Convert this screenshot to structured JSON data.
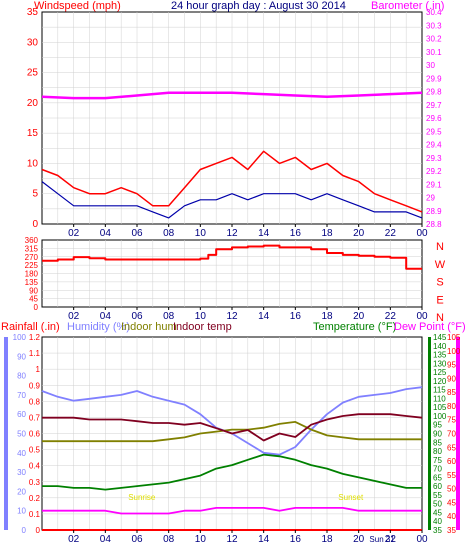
{
  "chart_data": [
    {
      "type": "line",
      "title": "24 hour graph day : August 30 2014",
      "left_label": "Windspeed (mph)",
      "right_label": "Barometer (.in)",
      "x_ticks": [
        "02",
        "04",
        "06",
        "08",
        "10",
        "12",
        "14",
        "16",
        "18",
        "20",
        "22",
        "00"
      ],
      "y_left": {
        "range": [
          0,
          35
        ],
        "ticks": [
          "35",
          "30",
          "25",
          "20",
          "15",
          "10",
          "5",
          "0"
        ]
      },
      "y_right": {
        "range": [
          28.8,
          30.4
        ],
        "ticks": [
          "30.4",
          "30.3",
          "30.2",
          "30.1",
          "30",
          "29.9",
          "29.8",
          "29.7",
          "29.6",
          "29.5",
          "29.4",
          "29.3",
          "29.2",
          "29.1",
          "29",
          "28.9",
          "28.8"
        ]
      },
      "series": [
        {
          "name": "Windspeed (mph)",
          "color": "#ff0000",
          "axis": "left",
          "x": [
            0,
            1,
            2,
            3,
            4,
            5,
            6,
            7,
            8,
            9,
            10,
            11,
            12,
            13,
            14,
            15,
            16,
            17,
            18,
            19,
            20,
            21,
            22,
            23,
            24
          ],
          "y": [
            9,
            8,
            6,
            5,
            5,
            6,
            5,
            3,
            3,
            6,
            9,
            10,
            11,
            9,
            12,
            10,
            11,
            9,
            10,
            8,
            7,
            5,
            4,
            3,
            2
          ]
        },
        {
          "name": "Average wind (mph)",
          "color": "#0000aa",
          "axis": "left",
          "x": [
            0,
            1,
            2,
            3,
            4,
            5,
            6,
            7,
            8,
            9,
            10,
            11,
            12,
            13,
            14,
            15,
            16,
            17,
            18,
            19,
            20,
            21,
            22,
            23,
            24
          ],
          "y": [
            7,
            5,
            3,
            3,
            3,
            3,
            3,
            2,
            1,
            3,
            4,
            4,
            5,
            4,
            5,
            5,
            5,
            4,
            5,
            4,
            3,
            2,
            2,
            2,
            1
          ]
        },
        {
          "name": "Barometer (.in)",
          "color": "#ff00ff",
          "axis": "right",
          "x": [
            0,
            2,
            4,
            6,
            8,
            10,
            12,
            14,
            16,
            18,
            20,
            22,
            24
          ],
          "y": [
            29.76,
            29.75,
            29.75,
            29.77,
            29.79,
            29.79,
            29.79,
            29.78,
            29.77,
            29.76,
            29.77,
            29.78,
            29.79
          ]
        }
      ]
    },
    {
      "type": "line",
      "title": "",
      "x_ticks": [
        "02",
        "04",
        "06",
        "08",
        "10",
        "12",
        "14",
        "16",
        "18",
        "20",
        "22",
        "00"
      ],
      "y_left": {
        "range": [
          0,
          360
        ],
        "ticks": [
          "360",
          "315",
          "270",
          "225",
          "180",
          "135",
          "90",
          "45",
          "0"
        ]
      },
      "compass": [
        "N",
        "W",
        "S",
        "E",
        "N"
      ],
      "series": [
        {
          "name": "Wind direction (deg)",
          "color": "#ff0000",
          "axis": "left",
          "x": [
            0,
            1,
            2,
            3,
            4,
            5,
            6,
            7,
            8,
            9,
            10,
            10.5,
            11,
            12,
            13,
            14,
            15,
            16,
            17,
            18,
            19,
            20,
            21,
            22,
            23,
            24
          ],
          "y": [
            248,
            255,
            268,
            262,
            255,
            255,
            255,
            255,
            255,
            255,
            260,
            280,
            310,
            320,
            325,
            330,
            320,
            320,
            310,
            290,
            280,
            275,
            270,
            265,
            205,
            205
          ]
        }
      ]
    },
    {
      "type": "line",
      "title": "",
      "left_labels": [
        "Rainfall (.in)",
        "Humidity (%)",
        "Indoor hum",
        "Indoor temp"
      ],
      "right_labels": [
        "Temperature (°F)",
        "Dew Point (°F)"
      ],
      "x_ticks": [
        "02",
        "04",
        "06",
        "08",
        "10",
        "12",
        "14",
        "16",
        "18",
        "20",
        "22",
        "00"
      ],
      "date_marker": "Sun 31",
      "rain_axis": {
        "range": [
          0,
          1.2
        ],
        "ticks": [
          "1.2",
          "1.1",
          "1",
          "0.9",
          "0.8",
          "0.7",
          "0.6",
          "0.5",
          "0.4",
          "0.3",
          "0.2",
          "0.1",
          "0"
        ]
      },
      "hum_axis": {
        "range": [
          0,
          100
        ],
        "ticks": [
          "100",
          "90",
          "80",
          "70",
          "60",
          "50",
          "40",
          "30",
          "20",
          "10",
          "0"
        ]
      },
      "temp_axis": {
        "range": [
          35,
          145
        ],
        "ticks": [
          "145",
          "140",
          "135",
          "130",
          "125",
          "120",
          "115",
          "110",
          "105",
          "100",
          "95",
          "90",
          "85",
          "80",
          "75",
          "70",
          "65",
          "60",
          "55",
          "50",
          "45",
          "40",
          "35"
        ]
      },
      "dew_axis": {
        "range": [
          35,
          105
        ],
        "ticks": [
          "105",
          "100",
          "95",
          "90",
          "85",
          "80",
          "75",
          "70",
          "65",
          "60",
          "55",
          "50",
          "45",
          "40",
          "35"
        ]
      },
      "annotations": [
        {
          "text": "Sunrise",
          "x": 6.3
        },
        {
          "text": "Sunset",
          "x": 19.5
        }
      ],
      "series": [
        {
          "name": "Rainfall (.in)",
          "color": "#ff0000",
          "axis": "rain",
          "x": [
            0,
            24
          ],
          "y": [
            0,
            0
          ]
        },
        {
          "name": "Humidity (%)",
          "color": "#8080ff",
          "axis": "hum",
          "x": [
            0,
            1,
            2,
            3,
            4,
            5,
            6,
            7,
            8,
            9,
            10,
            11,
            12,
            13,
            14,
            15,
            16,
            17,
            18,
            19,
            20,
            21,
            22,
            23,
            24
          ],
          "y": [
            72,
            69,
            67,
            68,
            69,
            70,
            72,
            69,
            67,
            65,
            60,
            53,
            50,
            45,
            40,
            39,
            43,
            52,
            60,
            66,
            69,
            70,
            71,
            73,
            74
          ]
        },
        {
          "name": "Indoor hum",
          "color": "#808000",
          "axis": "hum",
          "x": [
            0,
            1,
            2,
            3,
            4,
            5,
            6,
            7,
            8,
            9,
            10,
            11,
            12,
            13,
            14,
            15,
            16,
            17,
            18,
            19,
            20,
            21,
            22,
            23,
            24
          ],
          "y": [
            46,
            46,
            46,
            46,
            46,
            46,
            46,
            46,
            47,
            48,
            50,
            51,
            52,
            52,
            53,
            55,
            56,
            52,
            49,
            48,
            47,
            47,
            47,
            47,
            47
          ]
        },
        {
          "name": "Indoor temp",
          "color": "#800020",
          "axis": "temp",
          "x": [
            0,
            1,
            2,
            3,
            4,
            5,
            6,
            7,
            8,
            9,
            10,
            11,
            12,
            13,
            14,
            15,
            16,
            17,
            18,
            19,
            20,
            21,
            22,
            23,
            24
          ],
          "y": [
            99,
            99,
            99,
            98,
            98,
            98,
            97,
            96,
            96,
            95,
            96,
            93,
            90,
            92,
            86,
            90,
            88,
            95,
            98,
            100,
            101,
            101,
            101,
            100,
            99
          ]
        },
        {
          "name": "Temperature (°F)",
          "color": "#008000",
          "axis": "temp",
          "x": [
            0,
            1,
            2,
            3,
            4,
            5,
            6,
            7,
            8,
            9,
            10,
            11,
            12,
            13,
            14,
            15,
            16,
            17,
            18,
            19,
            20,
            21,
            22,
            23,
            24
          ],
          "y": [
            60,
            60,
            59,
            59,
            58,
            59,
            60,
            61,
            62,
            64,
            66,
            70,
            72,
            75,
            78,
            77,
            75,
            72,
            70,
            67,
            65,
            63,
            61,
            59,
            59
          ]
        },
        {
          "name": "Dew Point (°F)",
          "color": "#ff00ff",
          "axis": "dew",
          "x": [
            0,
            1,
            2,
            3,
            4,
            5,
            6,
            7,
            8,
            9,
            10,
            11,
            12,
            13,
            14,
            15,
            16,
            17,
            18,
            19,
            20,
            21,
            22,
            23,
            24
          ],
          "y": [
            42,
            42,
            42,
            42,
            42,
            41,
            41,
            41,
            41,
            42,
            42,
            43,
            43,
            43,
            43,
            42,
            43,
            43,
            43,
            43,
            42,
            42,
            42,
            42,
            42
          ]
        }
      ]
    }
  ]
}
